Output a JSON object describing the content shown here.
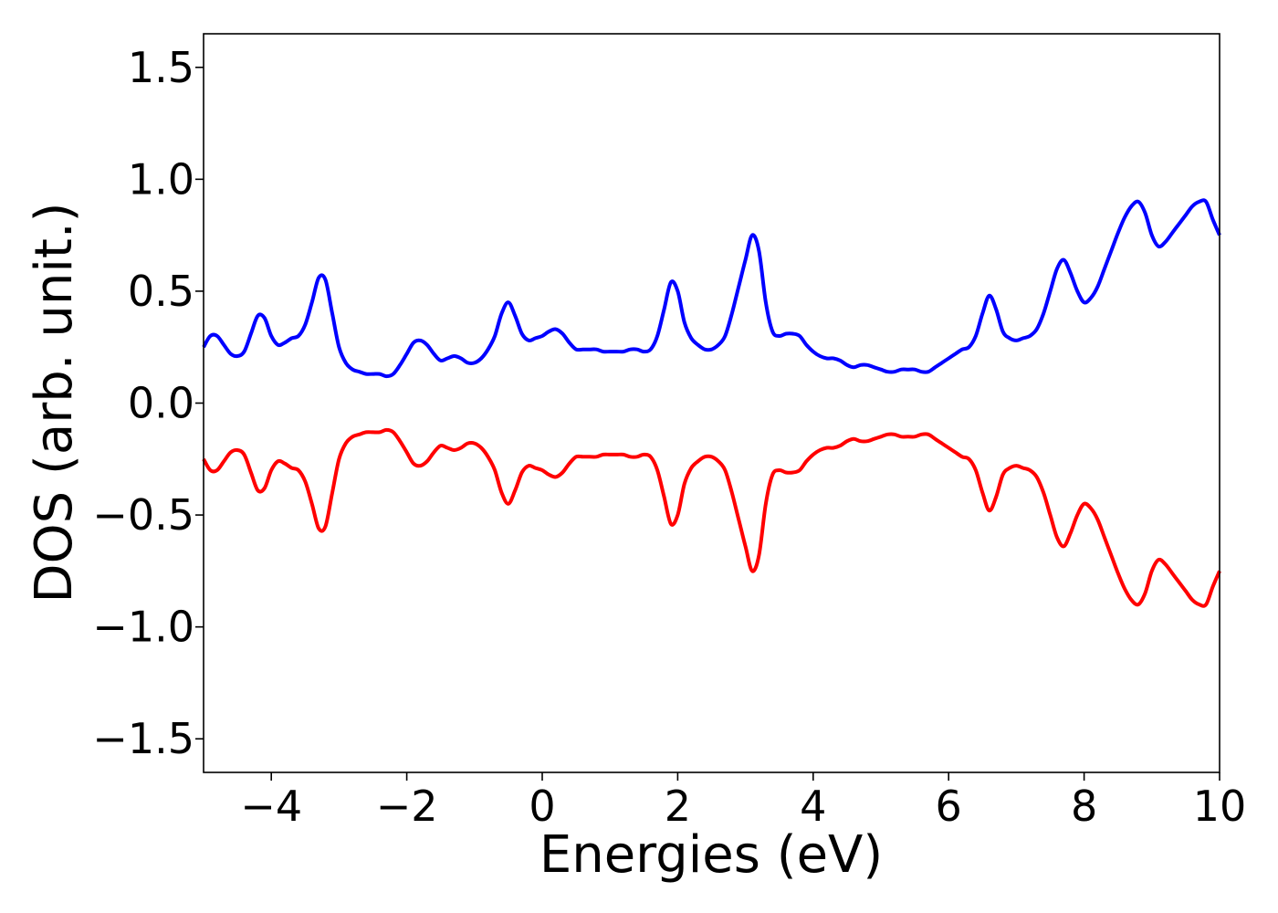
{
  "chart_data": {
    "type": "line",
    "xlabel": "Energies (eV)",
    "ylabel": "DOS (arb. unit.)",
    "xlim": [
      -5,
      10
    ],
    "ylim": [
      -1.65,
      1.65
    ],
    "xticks": [
      -4,
      -2,
      0,
      2,
      4,
      6,
      8,
      10
    ],
    "xtick_labels": [
      "−4",
      "−2",
      "0",
      "2",
      "4",
      "6",
      "8",
      "10"
    ],
    "yticks": [
      -1.5,
      -1.0,
      -0.5,
      0.0,
      0.5,
      1.0,
      1.5
    ],
    "ytick_labels": [
      "−1.5",
      "−1.0",
      "−0.5",
      "0.0",
      "0.5",
      "1.0",
      "1.5"
    ],
    "grid": false,
    "legend": "none",
    "series": [
      {
        "color": "#0000ff",
        "x": [
          -5.0,
          -4.9,
          -4.8,
          -4.7,
          -4.6,
          -4.5,
          -4.4,
          -4.3,
          -4.2,
          -4.1,
          -4.0,
          -3.9,
          -3.8,
          -3.7,
          -3.6,
          -3.5,
          -3.4,
          -3.3,
          -3.2,
          -3.1,
          -3.0,
          -2.9,
          -2.8,
          -2.7,
          -2.6,
          -2.5,
          -2.4,
          -2.3,
          -2.2,
          -2.1,
          -2.0,
          -1.9,
          -1.8,
          -1.7,
          -1.6,
          -1.5,
          -1.4,
          -1.3,
          -1.2,
          -1.1,
          -1.0,
          -0.9,
          -0.8,
          -0.7,
          -0.6,
          -0.5,
          -0.4,
          -0.3,
          -0.2,
          -0.1,
          0.0,
          0.1,
          0.2,
          0.3,
          0.4,
          0.5,
          0.6,
          0.7,
          0.8,
          0.9,
          1.0,
          1.1,
          1.2,
          1.3,
          1.4,
          1.5,
          1.6,
          1.7,
          1.8,
          1.9,
          2.0,
          2.1,
          2.2,
          2.3,
          2.4,
          2.5,
          2.6,
          2.7,
          2.8,
          2.9,
          3.0,
          3.1,
          3.2,
          3.3,
          3.4,
          3.5,
          3.6,
          3.7,
          3.8,
          3.9,
          4.0,
          4.1,
          4.2,
          4.3,
          4.4,
          4.5,
          4.6,
          4.7,
          4.8,
          4.9,
          5.0,
          5.1,
          5.2,
          5.3,
          5.4,
          5.5,
          5.6,
          5.7,
          5.8,
          5.9,
          6.0,
          6.1,
          6.2,
          6.3,
          6.4,
          6.5,
          6.6,
          6.7,
          6.8,
          6.9,
          7.0,
          7.1,
          7.2,
          7.3,
          7.4,
          7.5,
          7.6,
          7.7,
          7.8,
          7.9,
          8.0,
          8.1,
          8.2,
          8.3,
          8.4,
          8.5,
          8.6,
          8.7,
          8.8,
          8.9,
          9.0,
          9.1,
          9.2,
          9.3,
          9.4,
          9.5,
          9.6,
          9.7,
          9.8,
          9.9,
          10.0
        ],
        "y": [
          0.25,
          0.3,
          0.3,
          0.26,
          0.22,
          0.21,
          0.23,
          0.31,
          0.39,
          0.38,
          0.3,
          0.26,
          0.27,
          0.29,
          0.3,
          0.35,
          0.45,
          0.56,
          0.55,
          0.4,
          0.25,
          0.18,
          0.15,
          0.14,
          0.13,
          0.13,
          0.13,
          0.12,
          0.13,
          0.17,
          0.22,
          0.27,
          0.28,
          0.26,
          0.22,
          0.19,
          0.2,
          0.21,
          0.2,
          0.18,
          0.18,
          0.2,
          0.24,
          0.3,
          0.4,
          0.45,
          0.39,
          0.31,
          0.28,
          0.29,
          0.3,
          0.32,
          0.33,
          0.31,
          0.27,
          0.24,
          0.24,
          0.24,
          0.24,
          0.23,
          0.23,
          0.23,
          0.23,
          0.24,
          0.24,
          0.23,
          0.24,
          0.3,
          0.42,
          0.54,
          0.5,
          0.36,
          0.29,
          0.26,
          0.24,
          0.24,
          0.26,
          0.3,
          0.4,
          0.52,
          0.64,
          0.75,
          0.68,
          0.45,
          0.32,
          0.3,
          0.31,
          0.31,
          0.3,
          0.26,
          0.23,
          0.21,
          0.2,
          0.2,
          0.19,
          0.17,
          0.16,
          0.17,
          0.17,
          0.16,
          0.15,
          0.14,
          0.14,
          0.15,
          0.15,
          0.15,
          0.14,
          0.14,
          0.16,
          0.18,
          0.2,
          0.22,
          0.24,
          0.25,
          0.3,
          0.4,
          0.48,
          0.42,
          0.32,
          0.29,
          0.28,
          0.29,
          0.3,
          0.33,
          0.4,
          0.5,
          0.6,
          0.64,
          0.58,
          0.5,
          0.45,
          0.47,
          0.52,
          0.6,
          0.68,
          0.76,
          0.83,
          0.88,
          0.9,
          0.85,
          0.75,
          0.7,
          0.72,
          0.76,
          0.8,
          0.84,
          0.88,
          0.9,
          0.9,
          0.82,
          0.75
        ]
      },
      {
        "color": "#ff0000",
        "x": [
          -5.0,
          -4.9,
          -4.8,
          -4.7,
          -4.6,
          -4.5,
          -4.4,
          -4.3,
          -4.2,
          -4.1,
          -4.0,
          -3.9,
          -3.8,
          -3.7,
          -3.6,
          -3.5,
          -3.4,
          -3.3,
          -3.2,
          -3.1,
          -3.0,
          -2.9,
          -2.8,
          -2.7,
          -2.6,
          -2.5,
          -2.4,
          -2.3,
          -2.2,
          -2.1,
          -2.0,
          -1.9,
          -1.8,
          -1.7,
          -1.6,
          -1.5,
          -1.4,
          -1.3,
          -1.2,
          -1.1,
          -1.0,
          -0.9,
          -0.8,
          -0.7,
          -0.6,
          -0.5,
          -0.4,
          -0.3,
          -0.2,
          -0.1,
          0.0,
          0.1,
          0.2,
          0.3,
          0.4,
          0.5,
          0.6,
          0.7,
          0.8,
          0.9,
          1.0,
          1.1,
          1.2,
          1.3,
          1.4,
          1.5,
          1.6,
          1.7,
          1.8,
          1.9,
          2.0,
          2.1,
          2.2,
          2.3,
          2.4,
          2.5,
          2.6,
          2.7,
          2.8,
          2.9,
          3.0,
          3.1,
          3.2,
          3.3,
          3.4,
          3.5,
          3.6,
          3.7,
          3.8,
          3.9,
          4.0,
          4.1,
          4.2,
          4.3,
          4.4,
          4.5,
          4.6,
          4.7,
          4.8,
          4.9,
          5.0,
          5.1,
          5.2,
          5.3,
          5.4,
          5.5,
          5.6,
          5.7,
          5.8,
          5.9,
          6.0,
          6.1,
          6.2,
          6.3,
          6.4,
          6.5,
          6.6,
          6.7,
          6.8,
          6.9,
          7.0,
          7.1,
          7.2,
          7.3,
          7.4,
          7.5,
          7.6,
          7.7,
          7.8,
          7.9,
          8.0,
          8.1,
          8.2,
          8.3,
          8.4,
          8.5,
          8.6,
          8.7,
          8.8,
          8.9,
          9.0,
          9.1,
          9.2,
          9.3,
          9.4,
          9.5,
          9.6,
          9.7,
          9.8,
          9.9,
          10.0
        ],
        "y": [
          -0.25,
          -0.3,
          -0.3,
          -0.26,
          -0.22,
          -0.21,
          -0.23,
          -0.31,
          -0.39,
          -0.38,
          -0.3,
          -0.26,
          -0.27,
          -0.29,
          -0.3,
          -0.35,
          -0.45,
          -0.56,
          -0.55,
          -0.4,
          -0.25,
          -0.18,
          -0.15,
          -0.14,
          -0.13,
          -0.13,
          -0.13,
          -0.12,
          -0.13,
          -0.17,
          -0.22,
          -0.27,
          -0.28,
          -0.26,
          -0.22,
          -0.19,
          -0.2,
          -0.21,
          -0.2,
          -0.18,
          -0.18,
          -0.2,
          -0.24,
          -0.3,
          -0.4,
          -0.45,
          -0.39,
          -0.31,
          -0.28,
          -0.29,
          -0.3,
          -0.32,
          -0.33,
          -0.31,
          -0.27,
          -0.24,
          -0.24,
          -0.24,
          -0.24,
          -0.23,
          -0.23,
          -0.23,
          -0.23,
          -0.24,
          -0.24,
          -0.23,
          -0.24,
          -0.3,
          -0.42,
          -0.54,
          -0.5,
          -0.36,
          -0.29,
          -0.26,
          -0.24,
          -0.24,
          -0.26,
          -0.3,
          -0.4,
          -0.52,
          -0.64,
          -0.75,
          -0.68,
          -0.45,
          -0.32,
          -0.3,
          -0.31,
          -0.31,
          -0.3,
          -0.26,
          -0.23,
          -0.21,
          -0.2,
          -0.2,
          -0.19,
          -0.17,
          -0.16,
          -0.17,
          -0.17,
          -0.16,
          -0.15,
          -0.14,
          -0.14,
          -0.15,
          -0.15,
          -0.15,
          -0.14,
          -0.14,
          -0.16,
          -0.18,
          -0.2,
          -0.22,
          -0.24,
          -0.25,
          -0.3,
          -0.4,
          -0.48,
          -0.42,
          -0.32,
          -0.29,
          -0.28,
          -0.29,
          -0.3,
          -0.33,
          -0.4,
          -0.5,
          -0.6,
          -0.64,
          -0.58,
          -0.5,
          -0.45,
          -0.47,
          -0.52,
          -0.6,
          -0.68,
          -0.76,
          -0.83,
          -0.88,
          -0.9,
          -0.85,
          -0.75,
          -0.7,
          -0.72,
          -0.76,
          -0.8,
          -0.84,
          -0.88,
          -0.9,
          -0.9,
          -0.82,
          -0.75
        ]
      }
    ]
  }
}
